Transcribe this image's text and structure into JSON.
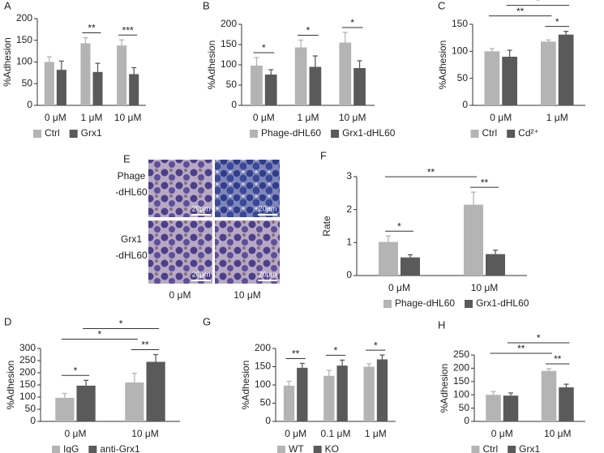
{
  "chart_data": [
    {
      "type": "bar",
      "panel": "A",
      "ylabel": "%Adhesion",
      "categories": [
        "0 μM",
        "1 μM",
        "10 μM"
      ],
      "series": [
        {
          "name": "Ctrl",
          "color": "#b4b4b4",
          "values": [
            100,
            143,
            138
          ],
          "error": [
            12,
            13,
            13
          ]
        },
        {
          "name": "Grx1",
          "color": "#5a5a5a",
          "values": [
            82,
            77,
            72
          ],
          "error": [
            20,
            20,
            15
          ]
        }
      ],
      "ylim": [
        0,
        200
      ],
      "yticks": [
        0,
        50,
        100,
        150,
        200
      ],
      "annotations": [
        {
          "text": "**",
          "from": [
            0,
            1
          ],
          "to": [
            1,
            1
          ]
        },
        {
          "text": "***",
          "from": [
            0,
            2
          ],
          "to": [
            1,
            2
          ]
        }
      ]
    },
    {
      "type": "bar",
      "panel": "B",
      "ylabel": "%Adhesion",
      "categories": [
        "0 μM",
        "1 μM",
        "10 μM"
      ],
      "series": [
        {
          "name": "Phage-dHL60",
          "color": "#b4b4b4",
          "values": [
            98,
            143,
            155
          ],
          "error": [
            20,
            18,
            25
          ]
        },
        {
          "name": "Grx1-dHL60",
          "color": "#5a5a5a",
          "values": [
            76,
            95,
            92
          ],
          "error": [
            12,
            27,
            18
          ]
        }
      ],
      "ylim": [
        0,
        200
      ],
      "yticks": [
        0,
        50,
        100,
        150,
        200
      ],
      "annotations": [
        {
          "text": "*",
          "from": [
            0,
            0
          ],
          "to": [
            1,
            0
          ]
        },
        {
          "text": "*",
          "from": [
            0,
            1
          ],
          "to": [
            1,
            1
          ]
        },
        {
          "text": "*",
          "from": [
            0,
            2
          ],
          "to": [
            1,
            2
          ]
        }
      ]
    },
    {
      "type": "bar",
      "panel": "C",
      "ylabel": "%Adhesion",
      "categories": [
        "0 μM",
        "1 μM"
      ],
      "series": [
        {
          "name": "Ctrl",
          "color": "#b4b4b4",
          "values": [
            100,
            118
          ],
          "error": [
            5,
            3
          ]
        },
        {
          "name": "Cd²⁺",
          "color": "#5a5a5a",
          "values": [
            90,
            131
          ],
          "error": [
            12,
            6
          ]
        }
      ],
      "ylim": [
        0,
        150
      ],
      "yticks": [
        0,
        50,
        100,
        150
      ],
      "annotations": [
        {
          "text": "*",
          "from": [
            0,
            1
          ],
          "to": [
            1,
            1
          ]
        },
        {
          "text": "**",
          "from": [
            0,
            0
          ],
          "to": [
            0,
            1
          ]
        },
        {
          "text": "*",
          "from": [
            1,
            0
          ],
          "to": [
            1,
            1
          ]
        }
      ]
    },
    {
      "type": "bar",
      "panel": "F",
      "ylabel": "Rate",
      "categories": [
        "0 μM",
        "10 μM"
      ],
      "series": [
        {
          "name": "Phage-dHL60",
          "color": "#b4b4b4",
          "values": [
            1.02,
            2.15
          ],
          "error": [
            0.18,
            0.38
          ]
        },
        {
          "name": "Grx1-dHL60",
          "color": "#5a5a5a",
          "values": [
            0.55,
            0.65
          ],
          "error": [
            0.08,
            0.12
          ]
        }
      ],
      "ylim": [
        0,
        3
      ],
      "yticks": [
        0,
        1,
        2,
        3
      ],
      "annotations": [
        {
          "text": "*",
          "from": [
            0,
            0
          ],
          "to": [
            1,
            0
          ]
        },
        {
          "text": "**",
          "from": [
            0,
            1
          ],
          "to": [
            1,
            1
          ]
        },
        {
          "text": "**",
          "from": [
            0,
            0
          ],
          "to": [
            0,
            1
          ]
        }
      ]
    },
    {
      "type": "bar",
      "panel": "D",
      "ylabel": "%Adhesion",
      "categories": [
        "0 μM",
        "10 μM"
      ],
      "series": [
        {
          "name": "IgG",
          "color": "#b4b4b4",
          "values": [
            97,
            160
          ],
          "error": [
            18,
            38
          ]
        },
        {
          "name": "anti-Grx1",
          "color": "#5a5a5a",
          "values": [
            147,
            245
          ],
          "error": [
            22,
            30
          ]
        }
      ],
      "ylim": [
        0,
        300
      ],
      "yticks": [
        0,
        50,
        100,
        150,
        200,
        250,
        300
      ],
      "annotations": [
        {
          "text": "*",
          "from": [
            0,
            0
          ],
          "to": [
            1,
            0
          ]
        },
        {
          "text": "**",
          "from": [
            0,
            1
          ],
          "to": [
            1,
            1
          ]
        },
        {
          "text": "*",
          "from": [
            0,
            0
          ],
          "to": [
            0,
            1
          ]
        },
        {
          "text": "*",
          "from": [
            1,
            0
          ],
          "to": [
            1,
            1
          ]
        }
      ]
    },
    {
      "type": "bar",
      "panel": "G",
      "ylabel": "%Adhesion",
      "categories": [
        "0 μM",
        "0.1 μM",
        "1 μM"
      ],
      "series": [
        {
          "name": "WT",
          "color": "#b4b4b4",
          "values": [
            98,
            125,
            150
          ],
          "error": [
            12,
            15,
            8
          ]
        },
        {
          "name": "KO",
          "color": "#5a5a5a",
          "values": [
            147,
            153,
            170
          ],
          "error": [
            12,
            15,
            12
          ]
        }
      ],
      "ylim": [
        0,
        200
      ],
      "yticks": [
        0,
        50,
        100,
        150,
        200
      ],
      "annotations": [
        {
          "text": "**",
          "from": [
            0,
            0
          ],
          "to": [
            1,
            0
          ]
        },
        {
          "text": "*",
          "from": [
            0,
            1
          ],
          "to": [
            1,
            1
          ]
        },
        {
          "text": "*",
          "from": [
            0,
            2
          ],
          "to": [
            1,
            2
          ]
        }
      ]
    },
    {
      "type": "bar",
      "panel": "H",
      "ylabel": "%Adhesion",
      "categories": [
        "0 μM",
        "10 μM"
      ],
      "series": [
        {
          "name": "Ctrl",
          "color": "#b4b4b4",
          "values": [
            100,
            190
          ],
          "error": [
            12,
            8
          ]
        },
        {
          "name": "Grx1",
          "color": "#5a5a5a",
          "values": [
            97,
            128
          ],
          "error": [
            10,
            12
          ]
        }
      ],
      "ylim": [
        0,
        250
      ],
      "yticks": [
        0,
        50,
        100,
        150,
        200,
        250
      ],
      "annotations": [
        {
          "text": "**",
          "from": [
            0,
            1
          ],
          "to": [
            1,
            1
          ]
        },
        {
          "text": "**",
          "from": [
            0,
            0
          ],
          "to": [
            0,
            1
          ]
        },
        {
          "text": "*",
          "from": [
            1,
            0
          ],
          "to": [
            1,
            1
          ]
        }
      ]
    }
  ],
  "panel_e": {
    "panel": "E",
    "rows": [
      [
        "Phage",
        "-dHL60"
      ],
      [
        "Grx1",
        "-dHL60"
      ]
    ],
    "columns": [
      "0 μM",
      "10 μM"
    ],
    "scale_bar": "20μm"
  }
}
